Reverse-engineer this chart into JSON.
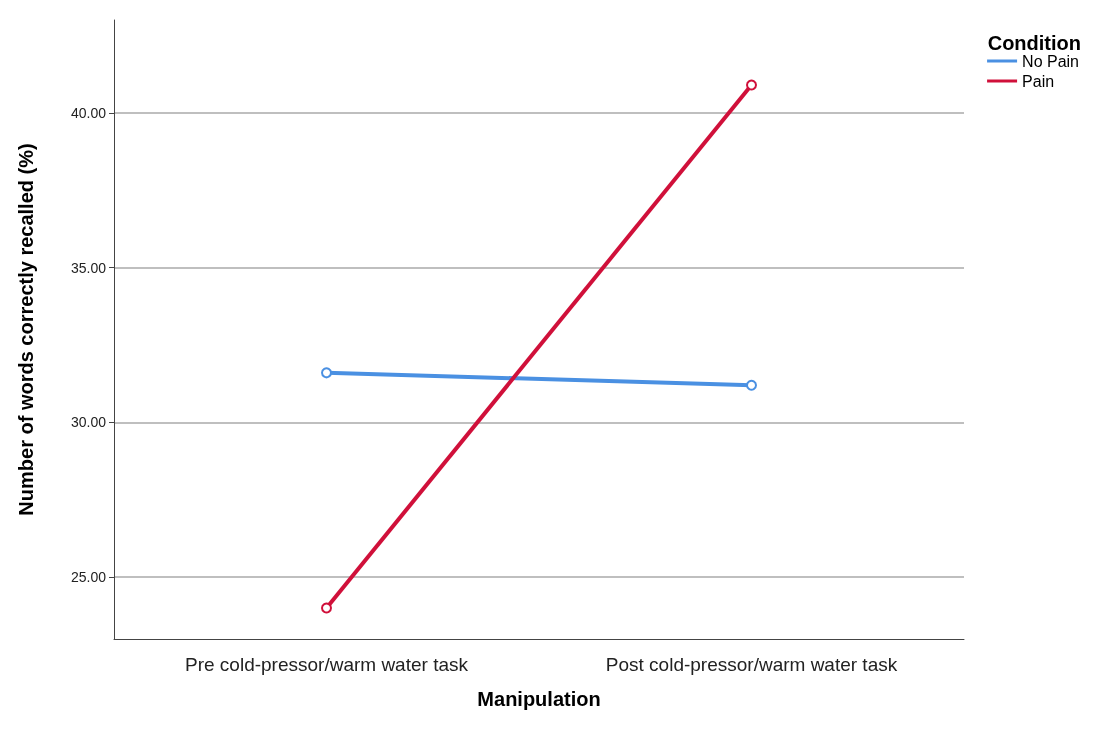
{
  "chart_data": {
    "type": "line",
    "xlabel": "Manipulation",
    "ylabel": "Number of words correctly recalled (%)",
    "legend_title": "Condition",
    "categories": [
      "Pre cold-pressor/warm water task",
      "Post cold-pressor/warm water task"
    ],
    "series": [
      {
        "name": "No Pain",
        "color": "#4a90e2",
        "values": [
          31.6,
          31.2
        ]
      },
      {
        "name": "Pain",
        "color": "#d0103a",
        "values": [
          24.0,
          40.9
        ]
      }
    ],
    "ylim": [
      23,
      43
    ],
    "yticks": [
      {
        "value": 25,
        "label": "25.00"
      },
      {
        "value": 30,
        "label": "30.00"
      },
      {
        "value": 35,
        "label": "35.00"
      },
      {
        "value": 40,
        "label": "40.00"
      }
    ],
    "grid": "y",
    "legend": "top right",
    "marker": "circle",
    "line_style": "solid"
  }
}
